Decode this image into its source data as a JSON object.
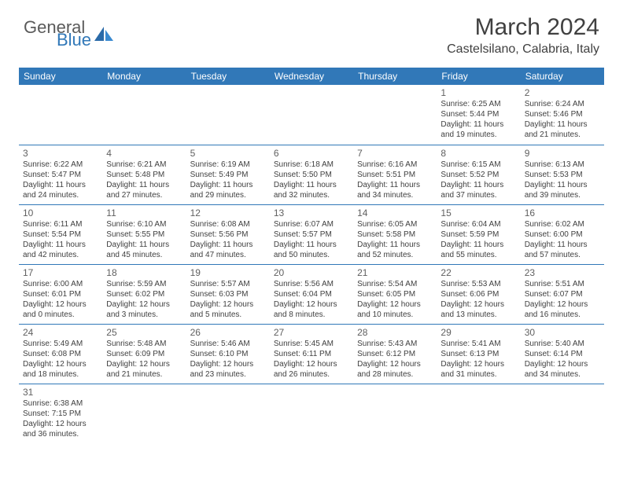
{
  "logo": {
    "text_top": "General",
    "text_bottom": "Blue"
  },
  "title": "March 2024",
  "location": "Castelsilano, Calabria, Italy",
  "colors": {
    "header_bg": "#3178b8",
    "header_fg": "#ffffff",
    "border": "#3178b8"
  },
  "day_headers": [
    "Sunday",
    "Monday",
    "Tuesday",
    "Wednesday",
    "Thursday",
    "Friday",
    "Saturday"
  ],
  "weeks": [
    [
      null,
      null,
      null,
      null,
      null,
      {
        "n": "1",
        "sr": "6:25 AM",
        "ss": "5:44 PM",
        "dh": "11",
        "dm": "19"
      },
      {
        "n": "2",
        "sr": "6:24 AM",
        "ss": "5:46 PM",
        "dh": "11",
        "dm": "21"
      }
    ],
    [
      {
        "n": "3",
        "sr": "6:22 AM",
        "ss": "5:47 PM",
        "dh": "11",
        "dm": "24"
      },
      {
        "n": "4",
        "sr": "6:21 AM",
        "ss": "5:48 PM",
        "dh": "11",
        "dm": "27"
      },
      {
        "n": "5",
        "sr": "6:19 AM",
        "ss": "5:49 PM",
        "dh": "11",
        "dm": "29"
      },
      {
        "n": "6",
        "sr": "6:18 AM",
        "ss": "5:50 PM",
        "dh": "11",
        "dm": "32"
      },
      {
        "n": "7",
        "sr": "6:16 AM",
        "ss": "5:51 PM",
        "dh": "11",
        "dm": "34"
      },
      {
        "n": "8",
        "sr": "6:15 AM",
        "ss": "5:52 PM",
        "dh": "11",
        "dm": "37"
      },
      {
        "n": "9",
        "sr": "6:13 AM",
        "ss": "5:53 PM",
        "dh": "11",
        "dm": "39"
      }
    ],
    [
      {
        "n": "10",
        "sr": "6:11 AM",
        "ss": "5:54 PM",
        "dh": "11",
        "dm": "42"
      },
      {
        "n": "11",
        "sr": "6:10 AM",
        "ss": "5:55 PM",
        "dh": "11",
        "dm": "45"
      },
      {
        "n": "12",
        "sr": "6:08 AM",
        "ss": "5:56 PM",
        "dh": "11",
        "dm": "47"
      },
      {
        "n": "13",
        "sr": "6:07 AM",
        "ss": "5:57 PM",
        "dh": "11",
        "dm": "50"
      },
      {
        "n": "14",
        "sr": "6:05 AM",
        "ss": "5:58 PM",
        "dh": "11",
        "dm": "52"
      },
      {
        "n": "15",
        "sr": "6:04 AM",
        "ss": "5:59 PM",
        "dh": "11",
        "dm": "55"
      },
      {
        "n": "16",
        "sr": "6:02 AM",
        "ss": "6:00 PM",
        "dh": "11",
        "dm": "57"
      }
    ],
    [
      {
        "n": "17",
        "sr": "6:00 AM",
        "ss": "6:01 PM",
        "dh": "12",
        "dm": "0"
      },
      {
        "n": "18",
        "sr": "5:59 AM",
        "ss": "6:02 PM",
        "dh": "12",
        "dm": "3"
      },
      {
        "n": "19",
        "sr": "5:57 AM",
        "ss": "6:03 PM",
        "dh": "12",
        "dm": "5"
      },
      {
        "n": "20",
        "sr": "5:56 AM",
        "ss": "6:04 PM",
        "dh": "12",
        "dm": "8"
      },
      {
        "n": "21",
        "sr": "5:54 AM",
        "ss": "6:05 PM",
        "dh": "12",
        "dm": "10"
      },
      {
        "n": "22",
        "sr": "5:53 AM",
        "ss": "6:06 PM",
        "dh": "12",
        "dm": "13"
      },
      {
        "n": "23",
        "sr": "5:51 AM",
        "ss": "6:07 PM",
        "dh": "12",
        "dm": "16"
      }
    ],
    [
      {
        "n": "24",
        "sr": "5:49 AM",
        "ss": "6:08 PM",
        "dh": "12",
        "dm": "18"
      },
      {
        "n": "25",
        "sr": "5:48 AM",
        "ss": "6:09 PM",
        "dh": "12",
        "dm": "21"
      },
      {
        "n": "26",
        "sr": "5:46 AM",
        "ss": "6:10 PM",
        "dh": "12",
        "dm": "23"
      },
      {
        "n": "27",
        "sr": "5:45 AM",
        "ss": "6:11 PM",
        "dh": "12",
        "dm": "26"
      },
      {
        "n": "28",
        "sr": "5:43 AM",
        "ss": "6:12 PM",
        "dh": "12",
        "dm": "28"
      },
      {
        "n": "29",
        "sr": "5:41 AM",
        "ss": "6:13 PM",
        "dh": "12",
        "dm": "31"
      },
      {
        "n": "30",
        "sr": "5:40 AM",
        "ss": "6:14 PM",
        "dh": "12",
        "dm": "34"
      }
    ],
    [
      {
        "n": "31",
        "sr": "6:38 AM",
        "ss": "7:15 PM",
        "dh": "12",
        "dm": "36"
      },
      null,
      null,
      null,
      null,
      null,
      null
    ]
  ],
  "labels": {
    "sunrise": "Sunrise:",
    "sunset": "Sunset:",
    "daylight": "Daylight:",
    "hours": "hours",
    "and": "and",
    "minutes": "minutes."
  }
}
